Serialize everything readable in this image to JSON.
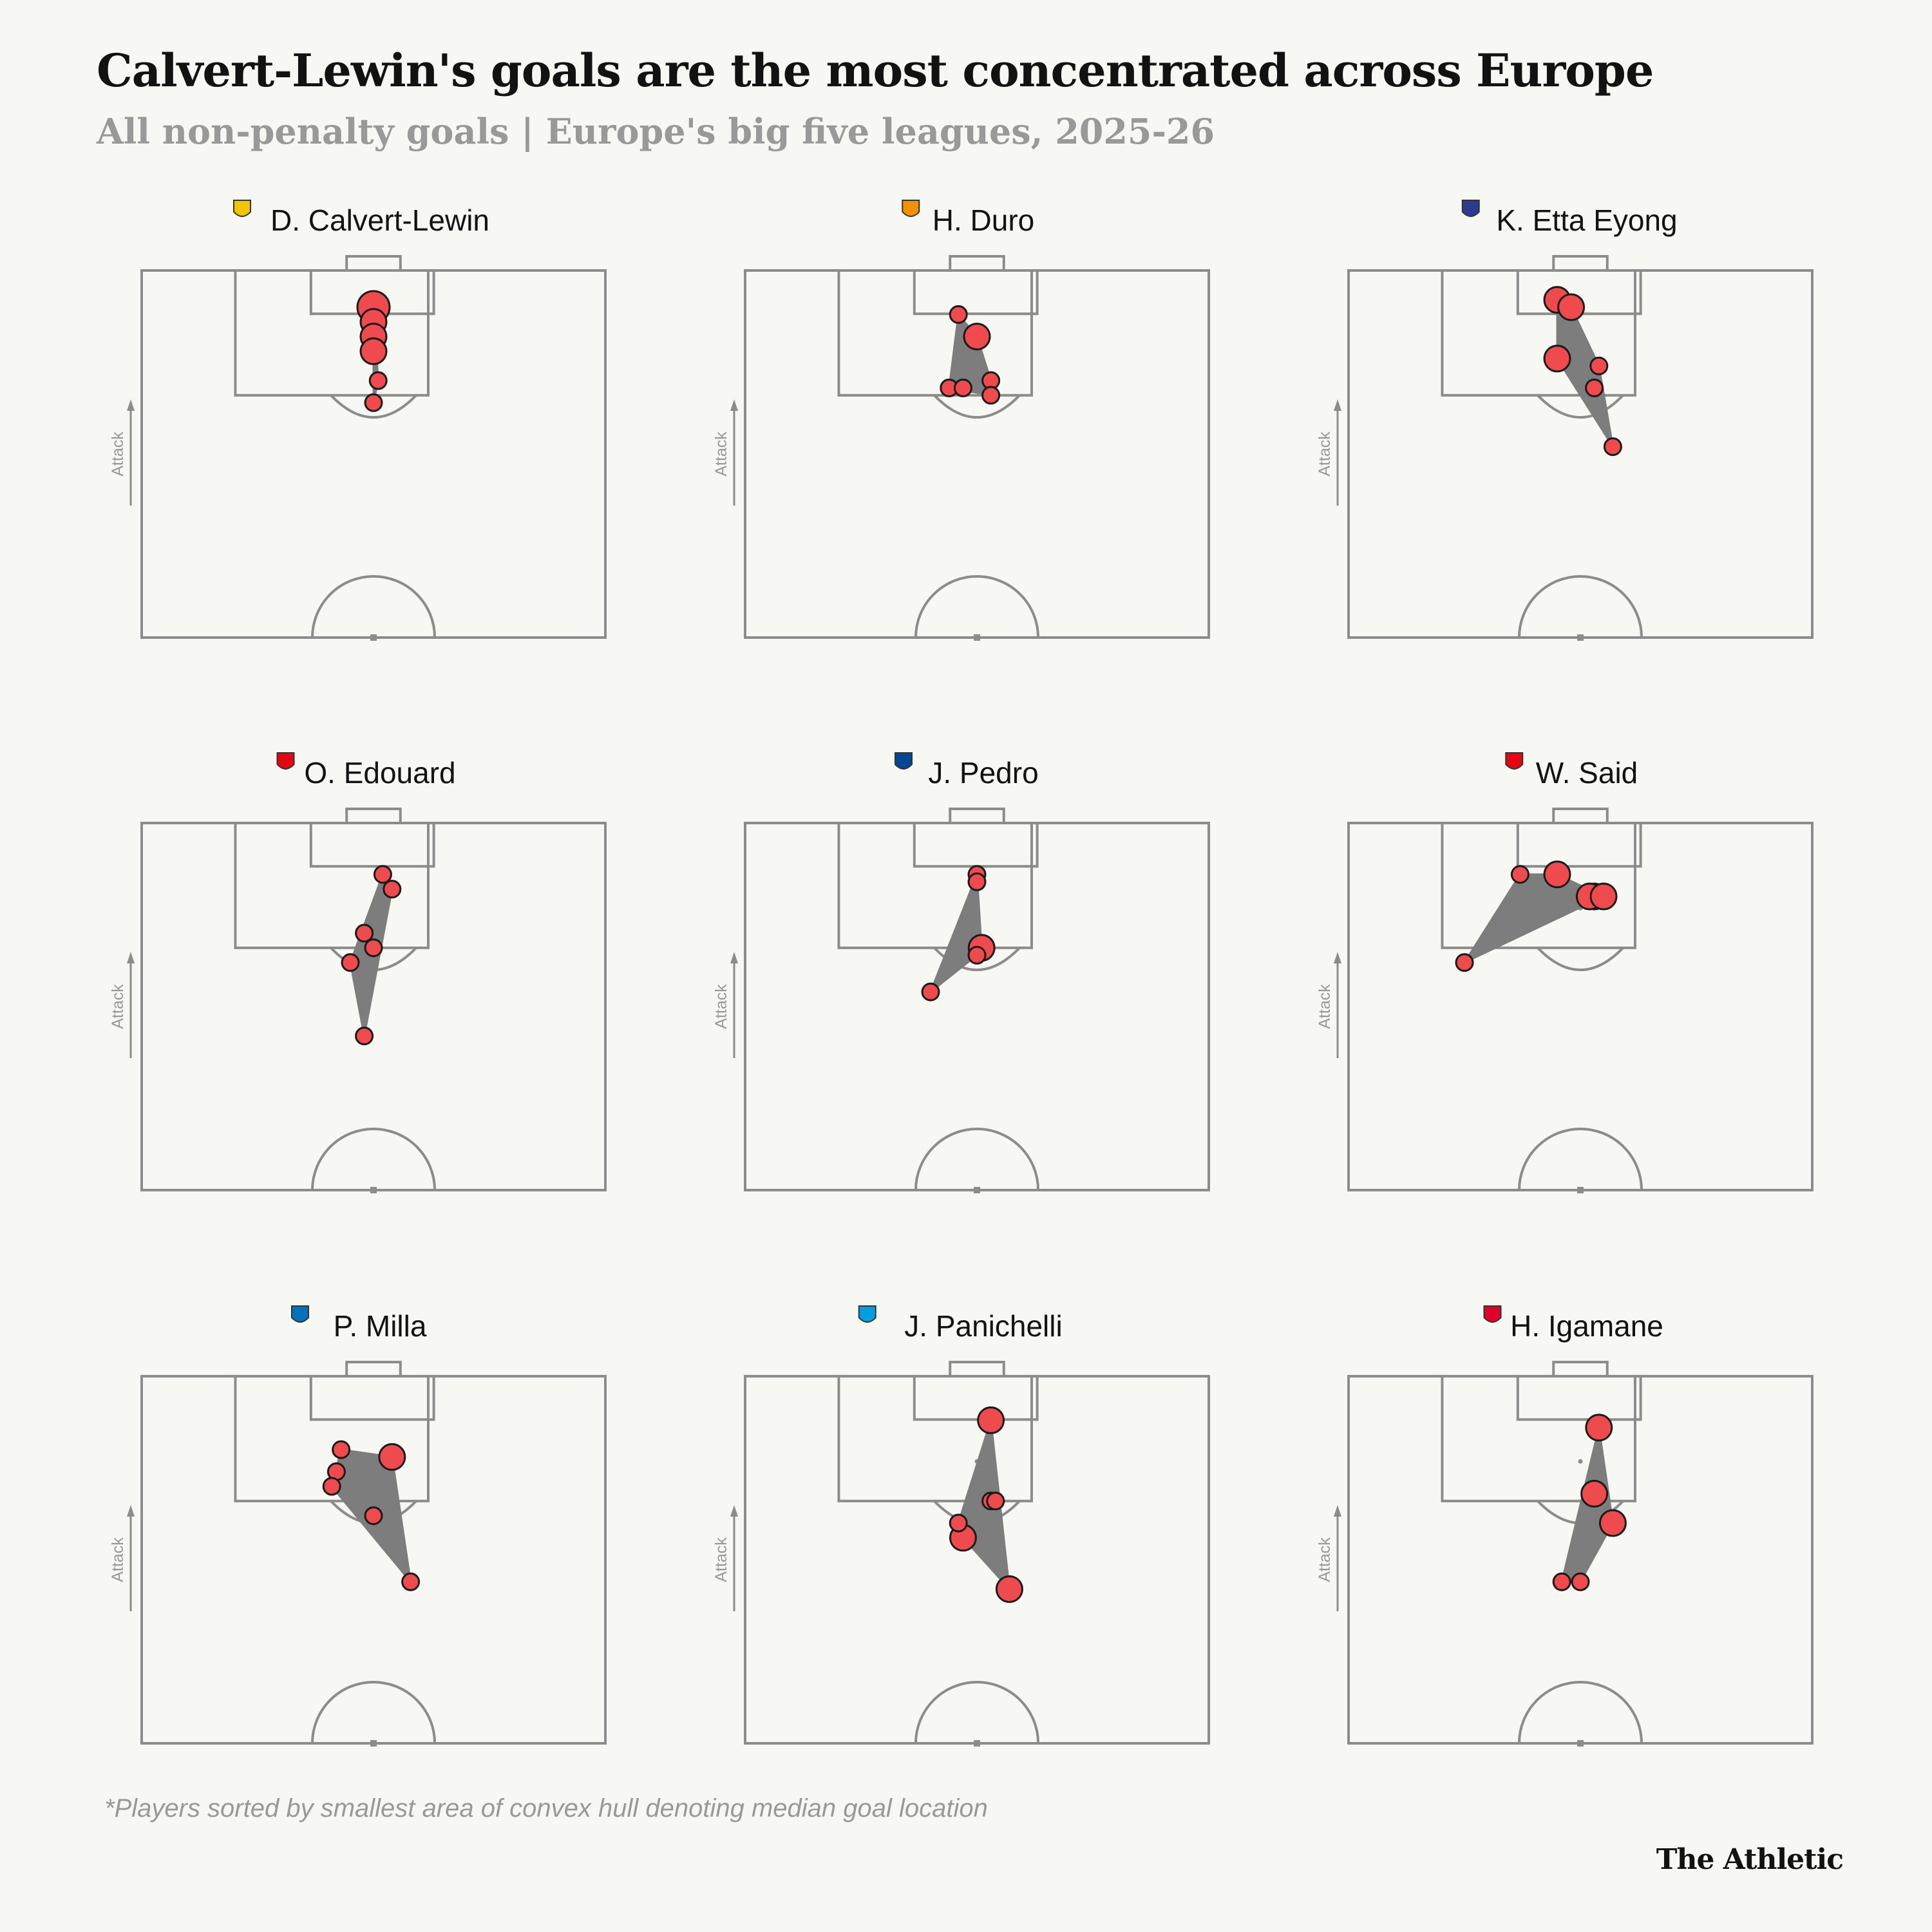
{
  "title": "Calvert-Lewin's goals are the most concentrated across Europe",
  "subtitle": "All non-penalty goals | Europe's big five leagues, 2025-26",
  "footnote": "*Players sorted by smallest area of convex hull denoting median goal location",
  "brand": "The Athletic",
  "axis_label": "Attack",
  "colors": {
    "goal": "#ef4b4f",
    "hull": "#7d7d7d",
    "pitch_line": "#8c8c8c",
    "background": "#f7f7f3"
  },
  "chart_data": [
    {
      "type": "scatter",
      "player": "D. Calvert-Lewin",
      "badge": "leeds-badge-icon",
      "badge_color": "#f2c500",
      "points": [
        [
          50,
          95,
          3
        ],
        [
          50,
          93,
          2
        ],
        [
          50,
          91,
          2
        ],
        [
          50,
          89,
          2
        ],
        [
          51,
          85,
          1
        ],
        [
          50,
          82,
          1
        ]
      ]
    },
    {
      "type": "scatter",
      "player": "H. Duro",
      "badge": "valencia-badge-icon",
      "badge_color": "#f39200",
      "points": [
        [
          46,
          94,
          1
        ],
        [
          50,
          91,
          2
        ],
        [
          44,
          84,
          1
        ],
        [
          47,
          84,
          1
        ],
        [
          53,
          85,
          1
        ],
        [
          53,
          83,
          1
        ]
      ]
    },
    {
      "type": "scatter",
      "player": "K. Etta Eyong",
      "badge": "levante-badge-icon",
      "badge_color": "#2b3b8f",
      "points": [
        [
          45,
          96,
          2
        ],
        [
          48,
          95,
          2
        ],
        [
          45,
          88,
          2
        ],
        [
          54,
          87,
          1
        ],
        [
          53,
          84,
          1
        ],
        [
          57,
          76,
          1
        ]
      ]
    },
    {
      "type": "scatter",
      "player": "O. Edouard",
      "badge": "lens-badge-icon",
      "badge_color": "#e30613",
      "points": [
        [
          52,
          93,
          1
        ],
        [
          54,
          91,
          1
        ],
        [
          48,
          85,
          1
        ],
        [
          50,
          83,
          1
        ],
        [
          45,
          81,
          1
        ],
        [
          48,
          71,
          1
        ]
      ]
    },
    {
      "type": "scatter",
      "player": "J. Pedro",
      "badge": "chelsea-badge-icon",
      "badge_color": "#034694",
      "points": [
        [
          50,
          93,
          1
        ],
        [
          50,
          92,
          1
        ],
        [
          51,
          83,
          2
        ],
        [
          50,
          82,
          1
        ],
        [
          40,
          77,
          1
        ]
      ]
    },
    {
      "type": "scatter",
      "player": "W. Said",
      "badge": "lens-badge-icon",
      "badge_color": "#e30613",
      "points": [
        [
          37,
          93,
          1
        ],
        [
          45,
          93,
          2
        ],
        [
          53,
          90,
          2
        ],
        [
          52,
          90,
          2
        ],
        [
          55,
          90,
          2
        ],
        [
          25,
          81,
          1
        ]
      ]
    },
    {
      "type": "scatter",
      "player": "P. Milla",
      "badge": "espanyol-badge-icon",
      "badge_color": "#0072bb",
      "points": [
        [
          43,
          90,
          1
        ],
        [
          54,
          89,
          2
        ],
        [
          42,
          87,
          1
        ],
        [
          41,
          85,
          1
        ],
        [
          50,
          81,
          1
        ],
        [
          58,
          72,
          1
        ]
      ]
    },
    {
      "type": "scatter",
      "player": "J. Panichelli",
      "badge": "strasbourg-badge-icon",
      "badge_color": "#009fe3",
      "points": [
        [
          53,
          94,
          2
        ],
        [
          53,
          83,
          1
        ],
        [
          54,
          83,
          1
        ],
        [
          46,
          80,
          1
        ],
        [
          47,
          78,
          2
        ],
        [
          57,
          71,
          2
        ]
      ]
    },
    {
      "type": "scatter",
      "player": "H. Igamane",
      "badge": "lille-badge-icon",
      "badge_color": "#e0002a",
      "points": [
        [
          54,
          93,
          2
        ],
        [
          53,
          84,
          2
        ],
        [
          57,
          80,
          2
        ],
        [
          46,
          72,
          1
        ],
        [
          50,
          72,
          1
        ]
      ]
    }
  ]
}
